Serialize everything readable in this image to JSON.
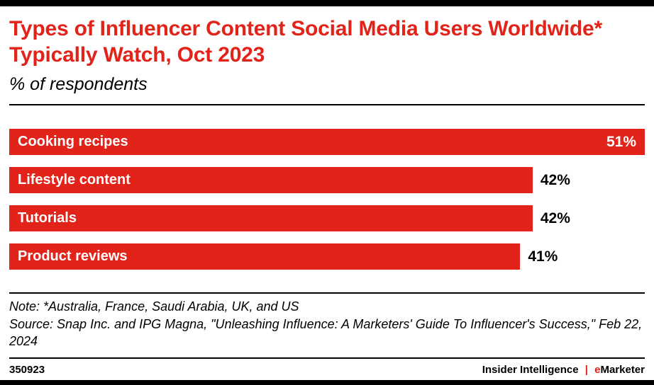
{
  "header": {
    "title": "Types of Influencer Content Social Media Users Worldwide* Typically Watch, Oct 2023",
    "subtitle": "% of respondents"
  },
  "chart_data": {
    "type": "bar",
    "orientation": "horizontal",
    "title": "Types of Influencer Content Social Media Users Worldwide* Typically Watch, Oct 2023",
    "subtitle": "% of respondents",
    "categories": [
      "Cooking recipes",
      "Lifestyle content",
      "Tutorials",
      "Product reviews"
    ],
    "values": [
      51,
      42,
      42,
      41
    ],
    "value_labels": [
      "51%",
      "42%",
      "42%",
      "41%"
    ],
    "unit": "% of respondents",
    "xlim": [
      0,
      51
    ],
    "bar_color": "#e2231a",
    "bar_text_color": "#ffffff",
    "grid": false,
    "legend": "none"
  },
  "footnote": {
    "note": "Note: *Australia, France, Saudi Arabia, UK, and US",
    "source": "Source: Snap Inc. and IPG Magna, \"Unleashing Influence: A Marketers' Guide To Influencer's Success,\" Feb 22, 2024"
  },
  "footer": {
    "chart_id": "350923",
    "brand_left": "Insider Intelligence",
    "brand_divider": "|",
    "brand_e": "e",
    "brand_rest": "Marketer"
  },
  "colors": {
    "accent_red": "#e2231a",
    "rule_black": "#000000"
  }
}
